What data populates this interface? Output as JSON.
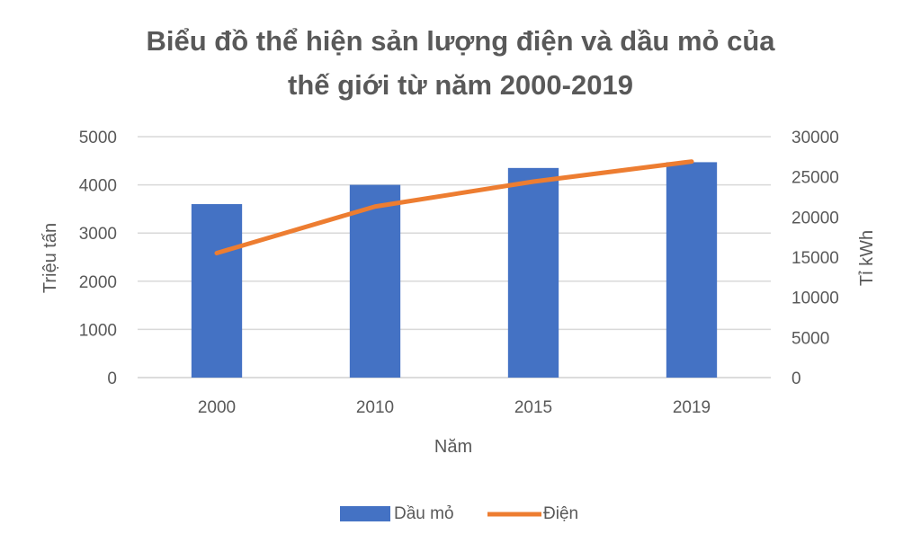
{
  "chart_data": {
    "type": "bar",
    "title_lines": [
      "Biểu đồ thể hiện sản lượng điện và dầu mỏ của",
      "thế giới từ năm 2000-2019"
    ],
    "categories": [
      "2000",
      "2010",
      "2015",
      "2019"
    ],
    "xlabel": "Năm",
    "ylabel_left": "Triệu tấn",
    "ylabel_right": "Tỉ kWh",
    "ylim_left": [
      0,
      5000
    ],
    "ylim_right": [
      0,
      30000
    ],
    "yticks_left": [
      "0",
      "1000",
      "2000",
      "3000",
      "4000",
      "5000"
    ],
    "yticks_right": [
      "0",
      "5000",
      "10000",
      "15000",
      "20000",
      "25000",
      "30000"
    ],
    "series": [
      {
        "name": "Dầu mỏ",
        "type": "bar",
        "axis": "left",
        "color": "#4472C4",
        "values": [
          3600,
          4000,
          4350,
          4470
        ]
      },
      {
        "name": "Điện",
        "type": "line",
        "axis": "right",
        "color": "#ED7D31",
        "values": [
          15500,
          21300,
          24400,
          26900
        ]
      }
    ],
    "grid": true,
    "legend_position": "bottom"
  }
}
